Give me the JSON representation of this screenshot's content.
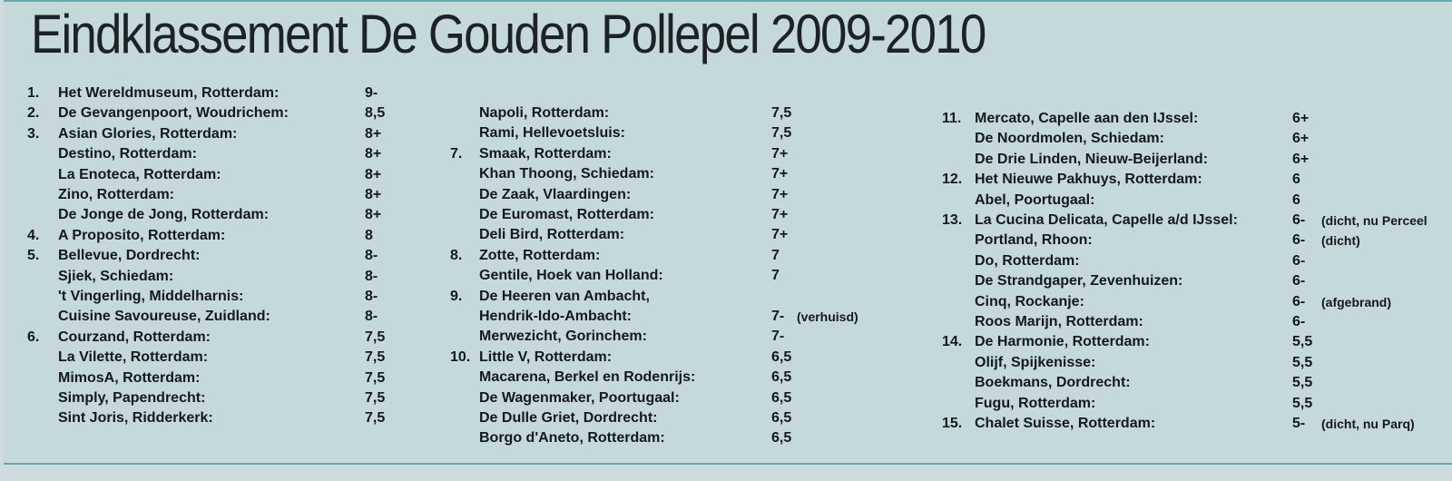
{
  "title": "Eindklassement De Gouden Pollepel 2009-2010",
  "columns": [
    {
      "rows": [
        {
          "rank": "1.",
          "name": "Het Wereldmuseum, Rotterdam:",
          "score": "9-",
          "note": ""
        },
        {
          "rank": "2.",
          "name": "De Gevangenpoort, Woudrichem:",
          "score": "8,5",
          "note": ""
        },
        {
          "rank": "3.",
          "name": "Asian Glories, Rotterdam:",
          "score": "8+",
          "note": ""
        },
        {
          "rank": "",
          "name": "Destino, Rotterdam:",
          "score": "8+",
          "note": ""
        },
        {
          "rank": "",
          "name": "La Enoteca, Rotterdam:",
          "score": "8+",
          "note": ""
        },
        {
          "rank": "",
          "name": "Zino, Rotterdam:",
          "score": "8+",
          "note": ""
        },
        {
          "rank": "",
          "name": "De Jonge de Jong, Rotterdam:",
          "score": "8+",
          "note": ""
        },
        {
          "rank": "4.",
          "name": "A Proposito, Rotterdam:",
          "score": "8",
          "note": ""
        },
        {
          "rank": "5.",
          "name": "Bellevue, Dordrecht:",
          "score": "8-",
          "note": ""
        },
        {
          "rank": "",
          "name": "Sjiek, Schiedam:",
          "score": "8-",
          "note": ""
        },
        {
          "rank": "",
          "name": "'t Vingerling, Middelharnis:",
          "score": "8-",
          "note": ""
        },
        {
          "rank": "",
          "name": "Cuisine Savoureuse, Zuidland:",
          "score": "8-",
          "note": ""
        },
        {
          "rank": "6.",
          "name": "Courzand, Rotterdam:",
          "score": "7,5",
          "note": ""
        },
        {
          "rank": "",
          "name": "La Vilette, Rotterdam:",
          "score": "7,5",
          "note": ""
        },
        {
          "rank": "",
          "name": "MimosA, Rotterdam:",
          "score": "7,5",
          "note": ""
        },
        {
          "rank": "",
          "name": "Simply, Papendrecht:",
          "score": "7,5",
          "note": ""
        },
        {
          "rank": "",
          "name": "Sint Joris, Ridderkerk:",
          "score": "7,5",
          "note": ""
        }
      ]
    },
    {
      "rows": [
        {
          "rank": "",
          "name": "Napoli, Rotterdam:",
          "score": "7,5",
          "note": ""
        },
        {
          "rank": "",
          "name": "Rami, Hellevoetsluis:",
          "score": "7,5",
          "note": ""
        },
        {
          "rank": "7.",
          "name": "Smaak, Rotterdam:",
          "score": "7+",
          "note": ""
        },
        {
          "rank": "",
          "name": "Khan Thoong, Schiedam:",
          "score": "7+",
          "note": ""
        },
        {
          "rank": "",
          "name": "De Zaak, Vlaardingen:",
          "score": "7+",
          "note": ""
        },
        {
          "rank": "",
          "name": "De Euromast, Rotterdam:",
          "score": "7+",
          "note": ""
        },
        {
          "rank": "",
          "name": "Deli Bird, Rotterdam:",
          "score": "7+",
          "note": ""
        },
        {
          "rank": "8.",
          "name": "Zotte, Rotterdam:",
          "score": "7",
          "note": ""
        },
        {
          "rank": "",
          "name": "Gentile, Hoek van Holland:",
          "score": "7",
          "note": ""
        },
        {
          "rank": "9.",
          "name": "De Heeren van Ambacht,",
          "score": "",
          "note": ""
        },
        {
          "rank": "",
          "name": "Hendrik-Ido-Ambacht:",
          "score": "7-",
          "note": "(verhuisd)"
        },
        {
          "rank": "",
          "name": "Merwezicht, Gorinchem:",
          "score": "7-",
          "note": ""
        },
        {
          "rank": "10.",
          "name": "Little V, Rotterdam:",
          "score": "6,5",
          "note": ""
        },
        {
          "rank": "",
          "name": "Macarena, Berkel en Rodenrijs:",
          "score": "6,5",
          "note": ""
        },
        {
          "rank": "",
          "name": "De Wagenmaker, Poortugaal:",
          "score": "6,5",
          "note": ""
        },
        {
          "rank": "",
          "name": "De Dulle Griet, Dordrecht:",
          "score": "6,5",
          "note": ""
        },
        {
          "rank": "",
          "name": "Borgo d'Aneto, Rotterdam:",
          "score": "6,5",
          "note": ""
        }
      ]
    },
    {
      "rows": [
        {
          "rank": "11.",
          "name": "Mercato, Capelle aan den IJssel:",
          "score": "6+",
          "note": ""
        },
        {
          "rank": "",
          "name": "De Noordmolen, Schiedam:",
          "score": "6+",
          "note": ""
        },
        {
          "rank": "",
          "name": "De Drie Linden, Nieuw-Beijerland:",
          "score": "6+",
          "note": ""
        },
        {
          "rank": "12.",
          "name": "Het Nieuwe Pakhuys, Rotterdam:",
          "score": "6",
          "note": ""
        },
        {
          "rank": "",
          "name": "Abel, Poortugaal:",
          "score": "6",
          "note": ""
        },
        {
          "rank": "13.",
          "name": "La Cucina Delicata, Capelle a/d IJssel:",
          "score": "6-",
          "note": "(dicht, nu Perceel"
        },
        {
          "rank": "",
          "name": "Portland, Rhoon:",
          "score": "6-",
          "note": "(dicht)"
        },
        {
          "rank": "",
          "name": "Do, Rotterdam:",
          "score": "6-",
          "note": ""
        },
        {
          "rank": "",
          "name": "De Strandgaper, Zevenhuizen:",
          "score": "6-",
          "note": ""
        },
        {
          "rank": "",
          "name": "Cinq, Rockanje:",
          "score": "6-",
          "note": "(afgebrand)"
        },
        {
          "rank": "",
          "name": "Roos Marijn, Rotterdam:",
          "score": "6-",
          "note": ""
        },
        {
          "rank": "14.",
          "name": "De Harmonie, Rotterdam:",
          "score": "5,5",
          "note": ""
        },
        {
          "rank": "",
          "name": "Olijf, Spijkenisse:",
          "score": "5,5",
          "note": ""
        },
        {
          "rank": "",
          "name": "Boekmans, Dordrecht:",
          "score": "5,5",
          "note": ""
        },
        {
          "rank": "",
          "name": "Fugu, Rotterdam:",
          "score": "5,5",
          "note": ""
        },
        {
          "rank": "15.",
          "name": "Chalet Suisse, Rotterdam:",
          "score": "5-",
          "note": "(dicht, nu Parq)"
        }
      ]
    }
  ]
}
